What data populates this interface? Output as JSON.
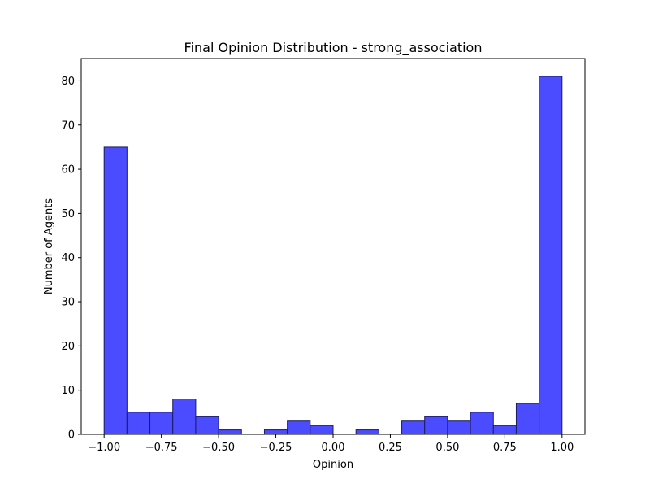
{
  "chart_data": {
    "type": "bar",
    "title": "Final Opinion Distribution - strong_association",
    "xlabel": "Opinion",
    "ylabel": "Number of Agents",
    "bin_edges": [
      -1.0,
      -0.9,
      -0.8,
      -0.7,
      -0.6,
      -0.5,
      -0.4,
      -0.3,
      -0.2,
      -0.1,
      0.0,
      0.1,
      0.2,
      0.3,
      0.4,
      0.5,
      0.6,
      0.7,
      0.8,
      0.9,
      1.0
    ],
    "values": [
      65,
      5,
      5,
      8,
      4,
      1,
      0,
      1,
      3,
      2,
      0,
      1,
      0,
      3,
      4,
      3,
      5,
      2,
      7,
      81
    ],
    "xlim": [
      -1.1,
      1.1
    ],
    "ylim": [
      0,
      85.05
    ],
    "x_ticks": [
      -1.0,
      -0.75,
      -0.5,
      -0.25,
      0.0,
      0.25,
      0.5,
      0.75,
      1.0
    ],
    "x_tick_labels": [
      "−1.00",
      "−0.75",
      "−0.50",
      "−0.25",
      "0.00",
      "0.25",
      "0.50",
      "0.75",
      "1.00"
    ],
    "y_ticks": [
      0,
      10,
      20,
      30,
      40,
      50,
      60,
      70,
      80
    ],
    "y_tick_labels": [
      "0",
      "10",
      "20",
      "30",
      "40",
      "50",
      "60",
      "70",
      "80"
    ],
    "grid": false,
    "colors": {
      "bar_fill": "#4b4bff",
      "bar_edge": "#1c1c5c",
      "axis": "#000000"
    }
  }
}
